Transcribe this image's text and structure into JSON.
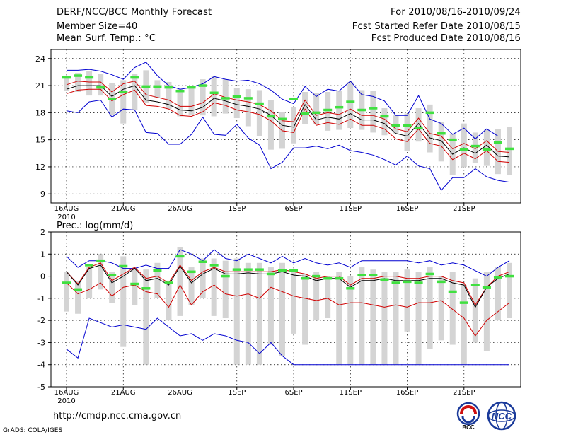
{
  "header": {
    "left": [
      "DERF/NCC/BCC Monthly Forecast",
      "Member Size=40",
      "Mean Surf. Temp.: °C"
    ],
    "right": [
      "For 2010/08/16-2010/09/24",
      "Fcst Started Refer Date 2010/08/15",
      "Fcst Produced Date 2010/08/16"
    ]
  },
  "footer": {
    "url": "http://cmdp.ncc.cma.gov.cn",
    "grads": "GrADS: COLA/IGES",
    "logo_bcc": "BCC",
    "logo_ncc": "NCC"
  },
  "colors": {
    "max_min": "#0000d0",
    "spread": "#d00000",
    "mean": "#000000",
    "observed": "#40e040",
    "box": "#d4d4d4",
    "grid": "#000000"
  },
  "chart_data": [
    {
      "type": "line",
      "title": "Mean Surf. Temp.: °C",
      "ylabel": "Mean Surf. Temp. (°C)",
      "ylim": [
        8,
        25
      ],
      "yticks": [
        9,
        12,
        15,
        18,
        21,
        24
      ],
      "xlim": [
        0,
        39
      ],
      "xticks": [
        {
          "x": 0,
          "label": "16AUG",
          "sub": "2010"
        },
        {
          "x": 5,
          "label": "21AUG"
        },
        {
          "x": 10,
          "label": "26AUG"
        },
        {
          "x": 15,
          "label": "1SEP"
        },
        {
          "x": 20,
          "label": "6SEP"
        },
        {
          "x": 25,
          "label": "11SEP"
        },
        {
          "x": 30,
          "label": "16SEP"
        },
        {
          "x": 35,
          "label": "21SEP"
        }
      ],
      "grid": true,
      "series": [
        {
          "name": "max",
          "role": "max",
          "values": [
            22.7,
            22.7,
            22.8,
            22.6,
            22.2,
            21.7,
            23.0,
            23.6,
            22.1,
            21.0,
            20.6,
            20.8,
            21.2,
            22.0,
            21.7,
            21.5,
            21.6,
            21.2,
            20.5,
            19.5,
            19.0,
            20.9,
            19.8,
            20.6,
            20.4,
            21.5,
            20.0,
            19.8,
            19.3,
            17.7,
            17.7,
            19.9,
            17.3,
            16.8,
            15.6,
            16.3,
            15.1,
            16.2,
            15.4,
            15.4
          ]
        },
        {
          "name": "upper",
          "role": "spread",
          "values": [
            21.1,
            21.5,
            21.4,
            21.4,
            20.3,
            21.2,
            21.5,
            20.0,
            19.7,
            19.4,
            18.7,
            18.7,
            19.1,
            20.1,
            19.7,
            19.4,
            19.2,
            18.9,
            18.2,
            17.1,
            17.0,
            19.4,
            17.7,
            18.0,
            17.8,
            18.4,
            17.7,
            17.7,
            17.3,
            16.2,
            15.9,
            17.4,
            15.7,
            15.4,
            14.0,
            14.6,
            14.0,
            14.9,
            13.7,
            13.6
          ]
        },
        {
          "name": "mean",
          "role": "mean",
          "values": [
            20.6,
            21.0,
            21.0,
            21.0,
            19.8,
            20.6,
            21.0,
            19.4,
            19.2,
            18.9,
            18.3,
            18.2,
            18.6,
            19.6,
            19.3,
            18.9,
            18.7,
            18.4,
            17.7,
            16.6,
            16.4,
            18.9,
            17.2,
            17.5,
            17.3,
            17.9,
            17.2,
            17.2,
            16.8,
            15.7,
            15.4,
            16.8,
            15.2,
            14.9,
            13.4,
            14.1,
            13.5,
            14.4,
            13.2,
            13.1
          ]
        },
        {
          "name": "lower",
          "role": "spread",
          "values": [
            20.1,
            20.5,
            20.6,
            20.6,
            19.3,
            20.0,
            20.5,
            18.8,
            18.7,
            18.4,
            17.7,
            17.6,
            18.1,
            19.1,
            18.8,
            18.3,
            18.1,
            17.8,
            17.1,
            16.0,
            15.8,
            18.4,
            16.6,
            16.9,
            16.7,
            17.3,
            16.6,
            16.6,
            16.2,
            15.1,
            14.8,
            16.2,
            14.6,
            14.3,
            12.8,
            13.5,
            12.9,
            13.8,
            12.6,
            12.5
          ]
        },
        {
          "name": "min",
          "role": "min",
          "values": [
            18.2,
            18.0,
            19.2,
            19.4,
            17.5,
            18.4,
            18.3,
            15.8,
            15.7,
            14.5,
            14.5,
            15.6,
            17.5,
            15.6,
            15.5,
            16.7,
            15.2,
            14.4,
            11.8,
            12.5,
            14.1,
            14.1,
            14.3,
            14.0,
            14.4,
            13.8,
            13.6,
            13.3,
            12.8,
            12.2,
            13.2,
            12.1,
            11.8,
            9.4,
            10.8,
            10.8,
            11.8,
            10.9,
            10.5,
            10.3
          ]
        },
        {
          "name": "observed",
          "role": "observed",
          "values": [
            21.9,
            22.1,
            21.9,
            20.8,
            19.5,
            20.3,
            21.9,
            20.9,
            20.9,
            20.8,
            20.4,
            20.8,
            21.0,
            20.2,
            19.6,
            19.8,
            19.6,
            19.0,
            17.6,
            17.3,
            19.5,
            17.9,
            18.0,
            18.3,
            18.6,
            19.2,
            18.3,
            18.5,
            17.6,
            16.6,
            16.6,
            16.3,
            18.0,
            15.7,
            15.0,
            13.9,
            14.3,
            13.9,
            14.7,
            14.0
          ]
        },
        {
          "name": "box_hi",
          "role": "box",
          "values": [
            22.1,
            22.4,
            22.6,
            22.3,
            21.3,
            21.6,
            22.3,
            22.7,
            21.6,
            21.4,
            20.6,
            20.9,
            21.7,
            22.1,
            21.7,
            20.7,
            20.6,
            20.5,
            19.4,
            18.1,
            18.6,
            20.3,
            20.2,
            20.3,
            20.4,
            21.4,
            20.5,
            20.4,
            18.5,
            17.7,
            17.9,
            18.5,
            18.9,
            17.0,
            15.7,
            16.8,
            15.8,
            16.1,
            16.2,
            16.4
          ]
        },
        {
          "name": "box_lo",
          "role": "box",
          "values": [
            20.4,
            20.3,
            19.9,
            19.9,
            17.7,
            16.8,
            18.3,
            19.1,
            19.6,
            18.4,
            17.6,
            17.8,
            17.7,
            17.6,
            17.9,
            17.4,
            16.5,
            15.4,
            13.9,
            14.0,
            14.6,
            16.7,
            16.7,
            16.0,
            16.1,
            16.3,
            16.1,
            15.8,
            15.5,
            15.7,
            13.8,
            14.8,
            13.6,
            12.6,
            11.1,
            12.0,
            12.4,
            12.1,
            11.2,
            11.1
          ]
        }
      ]
    },
    {
      "type": "line",
      "title": "Prec.: log(mm/d)",
      "ylabel": "Prec. log(mm/d)",
      "ylim": [
        -5,
        2
      ],
      "yticks": [
        -5,
        -4,
        -3,
        -2,
        -1,
        0,
        1,
        2
      ],
      "xlim": [
        0,
        39
      ],
      "xticks": [
        {
          "x": 0,
          "label": "16AUG",
          "sub": "2010"
        },
        {
          "x": 5,
          "label": "21AUG"
        },
        {
          "x": 10,
          "label": "26AUG"
        },
        {
          "x": 15,
          "label": "1SEP"
        },
        {
          "x": 20,
          "label": "6SEP"
        },
        {
          "x": 25,
          "label": "11SEP"
        },
        {
          "x": 30,
          "label": "16SEP"
        },
        {
          "x": 35,
          "label": "21SEP"
        }
      ],
      "grid": true,
      "series": [
        {
          "name": "max",
          "role": "max",
          "values": [
            0.9,
            0.4,
            0.7,
            0.7,
            0.6,
            0.35,
            0.35,
            0.5,
            0.35,
            0.35,
            1.2,
            1.0,
            0.7,
            1.2,
            0.8,
            0.7,
            1.0,
            0.8,
            0.6,
            0.9,
            0.6,
            0.8,
            0.6,
            0.5,
            0.6,
            0.4,
            0.7,
            0.7,
            0.7,
            0.7,
            0.7,
            0.6,
            0.7,
            0.5,
            0.6,
            0.5,
            0.25,
            0.0,
            0.4,
            0.7
          ]
        },
        {
          "name": "upper",
          "role": "spread",
          "values": [
            0.2,
            -0.35,
            0.4,
            0.6,
            -0.2,
            0.1,
            0.4,
            -0.1,
            0.0,
            -0.3,
            0.5,
            -0.2,
            0.2,
            0.4,
            0.2,
            0.2,
            0.2,
            0.2,
            0.2,
            0.3,
            0.2,
            0.1,
            -0.1,
            0.0,
            0.0,
            -0.4,
            -0.1,
            -0.1,
            0.0,
            0.0,
            -0.1,
            -0.1,
            0.0,
            0.0,
            -0.2,
            -0.3,
            -1.3,
            -0.5,
            0.0,
            0.2
          ]
        },
        {
          "name": "mean",
          "role": "mean",
          "values": [
            0.2,
            -0.4,
            0.35,
            0.5,
            -0.3,
            0.0,
            0.35,
            -0.2,
            -0.1,
            -0.4,
            0.45,
            -0.3,
            0.1,
            0.35,
            0.1,
            0.1,
            0.15,
            0.1,
            0.1,
            0.2,
            0.05,
            0.0,
            -0.2,
            -0.1,
            -0.1,
            -0.5,
            -0.2,
            -0.2,
            -0.1,
            -0.2,
            -0.2,
            -0.2,
            -0.1,
            -0.1,
            -0.3,
            -0.4,
            -1.4,
            -0.5,
            -0.1,
            0.1
          ]
        },
        {
          "name": "lower",
          "role": "spread",
          "values": [
            -0.3,
            -0.8,
            -0.6,
            -0.3,
            -0.9,
            -0.5,
            -0.4,
            -0.7,
            -0.8,
            -1.4,
            -0.4,
            -1.3,
            -0.7,
            -0.4,
            -0.8,
            -0.9,
            -0.8,
            -1.0,
            -0.5,
            -0.7,
            -0.9,
            -1.0,
            -1.1,
            -1.0,
            -1.3,
            -1.2,
            -1.2,
            -1.3,
            -1.4,
            -1.3,
            -1.4,
            -1.2,
            -1.2,
            -1.1,
            -1.5,
            -1.9,
            -2.7,
            -2.0,
            -1.6,
            -1.2
          ]
        },
        {
          "name": "min",
          "role": "min",
          "values": [
            -3.3,
            -3.7,
            -1.9,
            -2.1,
            -2.3,
            -2.2,
            -2.3,
            -2.4,
            -1.9,
            -2.3,
            -2.7,
            -2.6,
            -2.9,
            -2.6,
            -2.7,
            -2.9,
            -3.0,
            -3.5,
            -3.0,
            -3.6,
            -4.0,
            -4.0,
            -4.0,
            -4.0,
            -4.0,
            -4.0,
            -4.0,
            -4.0,
            -4.0,
            -4.0,
            -4.0,
            -4.0,
            -4.0,
            -4.0,
            -4.0,
            -4.0,
            -4.0,
            -4.0,
            -4.0,
            -4.0
          ]
        },
        {
          "name": "observed",
          "role": "observed",
          "values": [
            -0.3,
            -0.6,
            0.5,
            0.7,
            0.05,
            0.45,
            -0.35,
            -0.55,
            0.25,
            -0.3,
            0.9,
            0.2,
            0.65,
            0.5,
            0.0,
            0.3,
            0.3,
            0.3,
            0.1,
            0.25,
            0.25,
            -0.1,
            0.0,
            -0.1,
            -0.1,
            -0.55,
            0.05,
            0.05,
            -0.15,
            -0.3,
            -0.25,
            -0.3,
            0.1,
            -0.25,
            -0.7,
            -1.2,
            -0.4,
            -0.5,
            -0.05,
            0.0
          ]
        },
        {
          "name": "box_hi",
          "role": "box",
          "values": [
            0.2,
            -0.2,
            0.4,
            1.0,
            0.2,
            0.9,
            0.4,
            0.3,
            0.6,
            -0.2,
            1.3,
            0.4,
            0.8,
            0.8,
            0.7,
            0.8,
            0.6,
            0.6,
            0.4,
            0.6,
            0.2,
            0.1,
            0.2,
            0.0,
            0.2,
            0.0,
            0.4,
            0.3,
            0.2,
            0.2,
            0.3,
            0.2,
            0.4,
            0.0,
            0.2,
            -0.4,
            -0.1,
            0.2,
            0.4,
            0.6
          ]
        },
        {
          "name": "box_lo",
          "role": "box",
          "values": [
            -1.6,
            -1.7,
            -1.0,
            -0.6,
            -1.2,
            -3.2,
            -1.3,
            -4.0,
            -1.0,
            -2.0,
            -1.8,
            -1.3,
            -1.0,
            -1.8,
            -1.9,
            -4.0,
            -4.0,
            -4.0,
            -3.1,
            -3.6,
            -2.6,
            -3.1,
            -2.0,
            -1.9,
            -4.0,
            -4.0,
            -4.0,
            -4.0,
            -4.0,
            -4.0,
            -2.5,
            -4.0,
            -3.3,
            -2.9,
            -3.1,
            -4.0,
            -3.0,
            -3.4,
            -2.0,
            -1.9
          ]
        }
      ]
    }
  ]
}
